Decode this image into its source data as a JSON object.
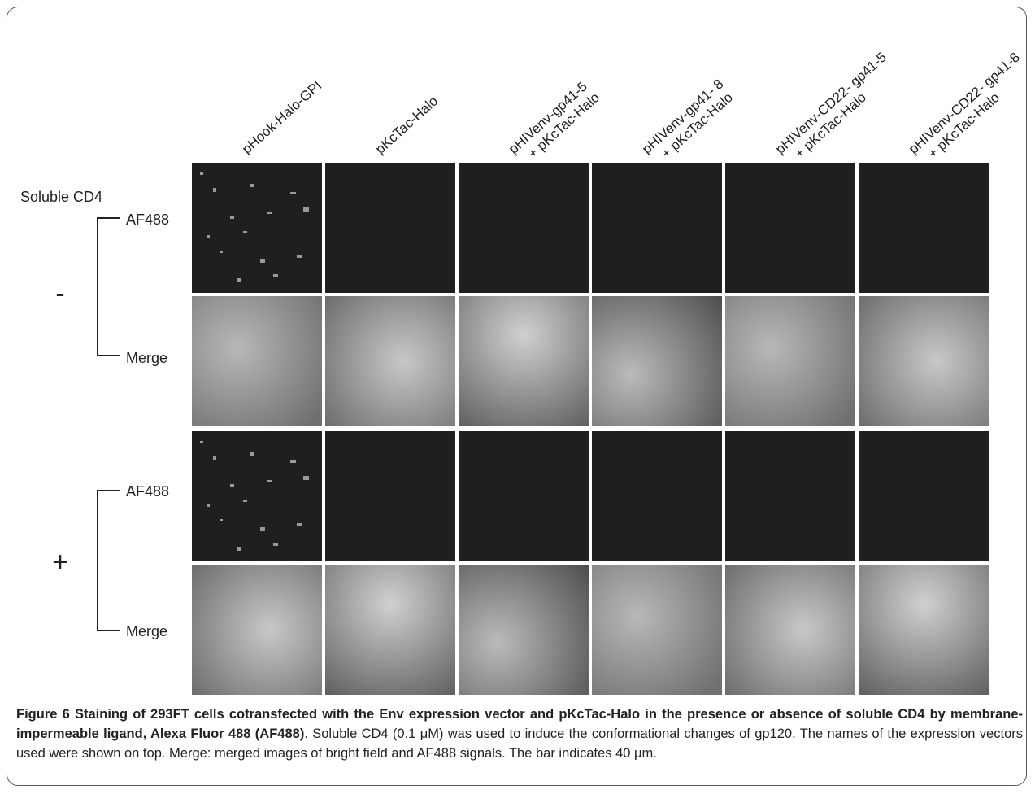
{
  "figure": {
    "column_headers": [
      [
        "pHook-Halo-GPI"
      ],
      [
        "pKcTac-Halo"
      ],
      [
        "pHIVenv-gp41-5",
        "+ pKcTac-Halo"
      ],
      [
        "pHIVenv-gp41- 8",
        "+ pKcTac-Halo"
      ],
      [
        "pHIVenv-CD22- gp41-5",
        "+ pKcTac-Halo"
      ],
      [
        "pHIVenv-CD22- gp41-8",
        "+ pKcTac-Halo"
      ]
    ],
    "row_group_title": "Soluble CD4",
    "groups": [
      {
        "sign": "-",
        "rows": [
          "AF488",
          "Merge"
        ]
      },
      {
        "sign": "+",
        "rows": [
          "AF488",
          "Merge"
        ]
      }
    ],
    "caption": {
      "bold": "Figure 6 Staining of 293FT cells cotransfected with the Env expression vector and pKcTac-Halo in the presence or absence of soluble CD4 by membrane-impermeable ligand, Alexa Fluor 488 (AF488)",
      "text": ". Soluble CD4 (0.1 μM) was used to induce the conformational changes of gp120. The names of the expression vectors used were shown on top. Merge: merged images of bright field and AF488 signals. The bar indicates 40 μm."
    }
  }
}
